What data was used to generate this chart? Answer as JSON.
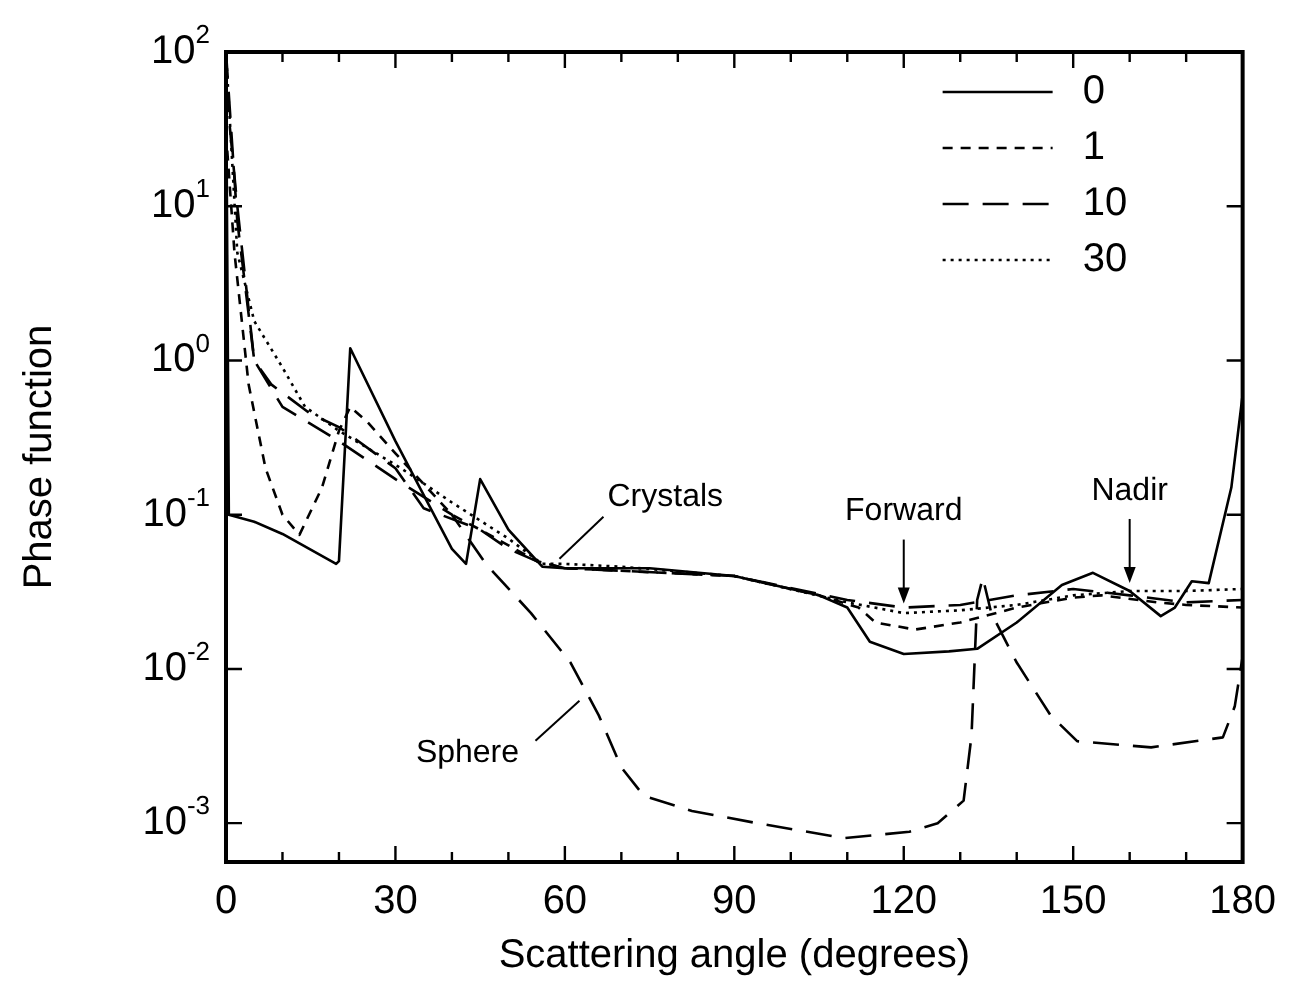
{
  "chart_data": {
    "type": "line",
    "xlabel": "Scattering angle (degrees)",
    "ylabel": "Phase function",
    "log": "y",
    "xlim": [
      0,
      180
    ],
    "xticks": [
      0,
      {
        "value": 10,
        "label": null
      },
      {
        "value": 20,
        "label": null
      },
      30,
      {
        "value": 40,
        "label": null
      },
      {
        "value": 50,
        "label": null
      },
      60,
      {
        "value": 70,
        "label": null
      },
      {
        "value": 80,
        "label": null
      },
      90,
      {
        "value": 100,
        "label": null
      },
      {
        "value": 110,
        "label": null
      },
      120,
      {
        "value": 130,
        "label": null
      },
      {
        "value": 140,
        "label": null
      },
      150,
      {
        "value": 160,
        "label": null
      },
      {
        "value": 170,
        "label": null
      },
      180
    ],
    "ylim": [
      0.00056,
      100
    ],
    "yticks": [
      {
        "value": 0.001,
        "label": "10$^{-3}$"
      },
      {
        "value": 0.01,
        "label": "10$^{-2}$"
      },
      {
        "value": 0.1,
        "label": "10$^{-1}$"
      },
      {
        "value": 1,
        "label": "10$^{0}$"
      },
      {
        "value": 10,
        "label": "10$^{1}$"
      },
      {
        "value": 100,
        "label": "10$^{2}$"
      }
    ],
    "grid": false,
    "legend": "top right",
    "marker": "none",
    "series": [
      {
        "name": "0",
        "color": "#000000",
        "line_style": "solid",
        "x": [
          0,
          0.5,
          5,
          10,
          19.5,
          20,
          22,
          30,
          40,
          42.5,
          45,
          50,
          56,
          60,
          75,
          90,
          105,
          110,
          114,
          120,
          128,
          133,
          140,
          148,
          153.5,
          160,
          165.5,
          168,
          171,
          174,
          178,
          180
        ],
        "values": [
          100,
          0.1,
          0.09,
          0.075,
          0.048,
          0.05,
          1.2,
          0.3,
          0.06,
          0.048,
          0.17,
          0.08,
          0.046,
          0.045,
          0.045,
          0.04,
          0.03,
          0.025,
          0.015,
          0.0125,
          0.013,
          0.0135,
          0.02,
          0.035,
          0.042,
          0.032,
          0.022,
          0.025,
          0.037,
          0.036,
          0.15,
          0.6
        ]
      },
      {
        "name": "1",
        "color": "#000000",
        "line_style": "dashed",
        "x": [
          0,
          1.5,
          4,
          7,
          10,
          13,
          17,
          20,
          22,
          25,
          30,
          40,
          45,
          55,
          60,
          90,
          105,
          112,
          115,
          122,
          130,
          140,
          150,
          155,
          165,
          170,
          180
        ],
        "values": [
          30,
          5,
          0.7,
          0.2,
          0.1,
          0.074,
          0.15,
          0.35,
          0.5,
          0.4,
          0.25,
          0.1,
          0.08,
          0.05,
          0.045,
          0.04,
          0.03,
          0.025,
          0.02,
          0.018,
          0.02,
          0.025,
          0.029,
          0.03,
          0.027,
          0.026,
          0.025
        ]
      },
      {
        "name": "10",
        "color": "#000000",
        "line_style": "dashed",
        "x": [
          0,
          2,
          5,
          8,
          15,
          20,
          30,
          35,
          45,
          50,
          55,
          60,
          90,
          110,
          120,
          130,
          140,
          150,
          160,
          170,
          180
        ],
        "values": [
          100,
          8,
          1,
          0.7,
          0.45,
          0.37,
          0.2,
          0.11,
          0.08,
          0.06,
          0.05,
          0.045,
          0.04,
          0.028,
          0.025,
          0.026,
          0.03,
          0.033,
          0.03,
          0.027,
          0.028
        ]
      },
      {
        "name": "30",
        "color": "#000000",
        "line_style": "dotted",
        "x": [
          0,
          2,
          5,
          10,
          14,
          20,
          31,
          40,
          50,
          56,
          60,
          70,
          90,
          110,
          120,
          130,
          140,
          150,
          160,
          170,
          180
        ],
        "values": [
          100,
          5,
          1.8,
          0.9,
          0.5,
          0.35,
          0.2,
          0.12,
          0.07,
          0.048,
          0.048,
          0.046,
          0.04,
          0.027,
          0.023,
          0.024,
          0.026,
          0.03,
          0.032,
          0.032,
          0.033
        ]
      },
      {
        "color": "#000000",
        "line_style": "dashed",
        "x": [
          0,
          2,
          5,
          10,
          20,
          30,
          40,
          46,
          54,
          61,
          66,
          70,
          74,
          82.5,
          94,
          109.5,
          121,
          126,
          130.6,
          132,
          133,
          134,
          135.5,
          140,
          146,
          150.7,
          163.8,
          176.5,
          178.6,
          180
        ],
        "values": [
          60,
          10,
          1,
          0.5,
          0.3,
          0.17,
          0.1,
          0.048,
          0.023,
          0.011,
          0.005,
          0.0023,
          0.0015,
          0.0012,
          0.001,
          0.0008,
          0.00088,
          0.001,
          0.0014,
          0.0037,
          0.028,
          0.039,
          0.023,
          0.011,
          0.005,
          0.0034,
          0.0031,
          0.0036,
          0.0057,
          0.012
        ]
      }
    ],
    "annotations": [
      {
        "text": "Crystals",
        "x": 64,
        "y": 0.046
      },
      {
        "text": "Forward",
        "x": 120,
        "y": 0.025
      },
      {
        "text": "Nadir",
        "x": 160,
        "y": 0.034
      },
      {
        "text": "Sphere",
        "x": 64,
        "y": 0.007
      }
    ]
  }
}
